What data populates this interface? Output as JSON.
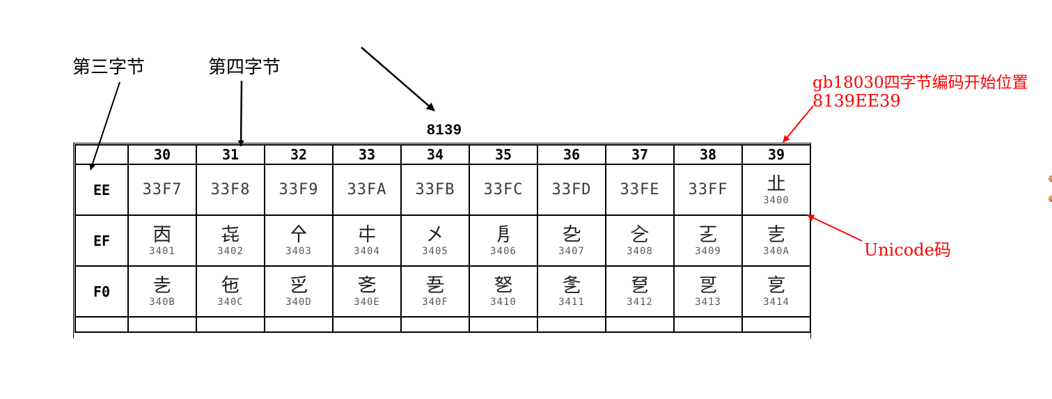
{
  "annotations": {
    "byte3_label": "第三字节",
    "byte4_label": "第四字节",
    "prefix_code": "8139",
    "gb18030_note_title": "gb18030四字节编码开始位置",
    "gb18030_note_code": "8139EE39",
    "unicode_note": "Unicode码"
  },
  "colors": {
    "annotation_red": "#ff0000",
    "grid_black": "#000000",
    "hex_text": "#3b3b3b",
    "unicode_small_text": "#545b66",
    "edge_dot_orange": "#a86a32",
    "background": "#ffffff"
  },
  "table": {
    "column_headers": [
      "",
      "30",
      "31",
      "32",
      "33",
      "34",
      "35",
      "36",
      "37",
      "38",
      "39"
    ],
    "rows": [
      {
        "row_header": "EE",
        "cells": [
          {
            "hex": "33F7"
          },
          {
            "hex": "33F8"
          },
          {
            "hex": "33F9"
          },
          {
            "hex": "33FA"
          },
          {
            "hex": "33FB"
          },
          {
            "hex": "33FC"
          },
          {
            "hex": "33FD"
          },
          {
            "hex": "33FE"
          },
          {
            "hex": "33FF"
          },
          {
            "char": "㐀",
            "ucode": "3400"
          }
        ]
      },
      {
        "row_header": "EF",
        "cells": [
          {
            "char": "㐁",
            "ucode": "3401"
          },
          {
            "char": "㐂",
            "ucode": "3402"
          },
          {
            "char": "㐃",
            "ucode": "3403"
          },
          {
            "char": "㐄",
            "ucode": "3404"
          },
          {
            "char": "㐅",
            "ucode": "3405"
          },
          {
            "char": "㐆",
            "ucode": "3406"
          },
          {
            "char": "㐇",
            "ucode": "3407"
          },
          {
            "char": "㐈",
            "ucode": "3408"
          },
          {
            "char": "㐉",
            "ucode": "3409"
          },
          {
            "char": "㐊",
            "ucode": "340A"
          }
        ]
      },
      {
        "row_header": "F0",
        "cells": [
          {
            "char": "㐋",
            "ucode": "340B"
          },
          {
            "char": "㐌",
            "ucode": "340C"
          },
          {
            "char": "㐍",
            "ucode": "340D"
          },
          {
            "char": "㐎",
            "ucode": "340E"
          },
          {
            "char": "㐏",
            "ucode": "340F"
          },
          {
            "char": "㐐",
            "ucode": "3410"
          },
          {
            "char": "㐑",
            "ucode": "3411"
          },
          {
            "char": "㐒",
            "ucode": "3412"
          },
          {
            "char": "㐓",
            "ucode": "3413"
          },
          {
            "char": "㐔",
            "ucode": "3414"
          }
        ]
      }
    ]
  }
}
